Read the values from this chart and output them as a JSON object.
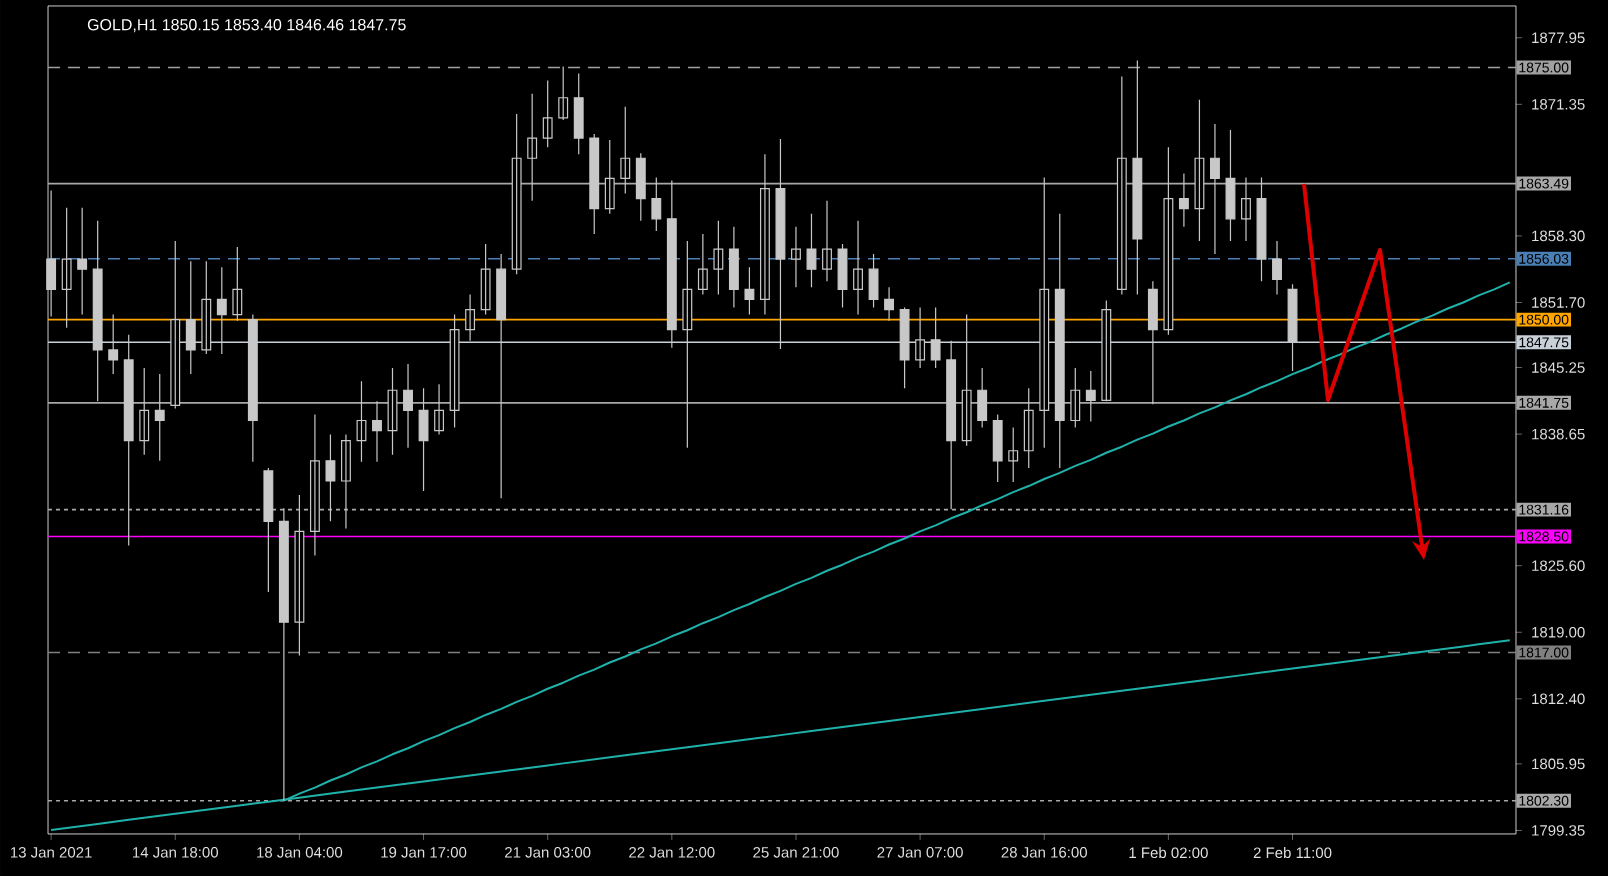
{
  "chart_data": {
    "type": "candlestick",
    "title": "GOLD,H1  1850.15 1853.40 1846.46 1847.75",
    "color": "#c8c8c8",
    "categories": [
      "13 Jan 2021",
      null,
      null,
      null,
      null,
      null,
      null,
      null,
      "14 Jan 18:00",
      null,
      null,
      null,
      null,
      null,
      null,
      null,
      "18 Jan 04:00",
      null,
      null,
      null,
      null,
      null,
      null,
      null,
      "19 Jan 17:00",
      null,
      null,
      null,
      null,
      null,
      null,
      null,
      "21 Jan 03:00",
      null,
      null,
      null,
      null,
      null,
      null,
      null,
      "22 Jan 12:00",
      null,
      null,
      null,
      null,
      null,
      null,
      null,
      "25 Jan 21:00",
      null,
      null,
      null,
      null,
      null,
      null,
      null,
      "27 Jan 07:00",
      null,
      null,
      null,
      null,
      null,
      null,
      null,
      "28 Jan 16:00",
      null,
      null,
      null,
      null,
      null,
      null,
      null,
      "1 Feb 02:00",
      null,
      null,
      null,
      null,
      null,
      null,
      null,
      "2 Feb 11:00",
      null,
      null,
      null,
      null,
      null,
      null,
      null,
      null,
      null,
      null,
      null,
      null,
      null,
      null
    ],
    "ohlc": [
      [
        1856,
        1862.8,
        1850.3,
        1853
      ],
      [
        1853,
        1861.1,
        1849.2,
        1856
      ],
      [
        1856,
        1861.1,
        1850.5,
        1855
      ],
      [
        1855,
        1859.8,
        1841.9,
        1847
      ],
      [
        1847,
        1850.5,
        1844.6,
        1846
      ],
      [
        1846,
        1848.5,
        1827.6,
        1838
      ],
      [
        1838,
        1845.2,
        1836.6,
        1841
      ],
      [
        1841,
        1844.6,
        1836,
        1840
      ],
      [
        1841.5,
        1857.8,
        1841.2,
        1850
      ],
      [
        1850,
        1855.8,
        1844.6,
        1847
      ],
      [
        1847,
        1855.8,
        1846.6,
        1852
      ],
      [
        1852,
        1855.2,
        1846.6,
        1850.5
      ],
      [
        1850.5,
        1857.2,
        1849.9,
        1853
      ],
      [
        1850,
        1850.5,
        1835.9,
        1840
      ],
      [
        1835,
        1835.3,
        1823,
        1830
      ],
      [
        1830,
        1831.3,
        1802.3,
        1820
      ],
      [
        1820,
        1832.6,
        1816.7,
        1829
      ],
      [
        1829,
        1840.6,
        1826.6,
        1836
      ],
      [
        1836,
        1838.6,
        1830,
        1834
      ],
      [
        1834,
        1838.6,
        1829.3,
        1838
      ],
      [
        1838,
        1843.9,
        1835.9,
        1840
      ],
      [
        1840,
        1841.9,
        1835.9,
        1839
      ],
      [
        1839,
        1845.2,
        1836.6,
        1843
      ],
      [
        1843,
        1845.6,
        1837.3,
        1841
      ],
      [
        1841,
        1843.2,
        1833,
        1838
      ],
      [
        1839,
        1843.6,
        1838.6,
        1841
      ],
      [
        1841,
        1850.5,
        1839.3,
        1849
      ],
      [
        1849,
        1852.5,
        1847.9,
        1851
      ],
      [
        1851,
        1857.5,
        1850.5,
        1855
      ],
      [
        1855,
        1856.5,
        1832.3,
        1850
      ],
      [
        1855,
        1870.4,
        1854.5,
        1866
      ],
      [
        1866,
        1872.4,
        1861.8,
        1868
      ],
      [
        1868,
        1873.7,
        1867.1,
        1870
      ],
      [
        1870,
        1875.1,
        1869.8,
        1872
      ],
      [
        1872,
        1874.4,
        1866.4,
        1868
      ],
      [
        1868,
        1868.4,
        1858.5,
        1861
      ],
      [
        1861,
        1867.8,
        1860.5,
        1864
      ],
      [
        1864,
        1871.1,
        1862.5,
        1866
      ],
      [
        1866,
        1866.5,
        1859.8,
        1862
      ],
      [
        1862,
        1864.1,
        1858.8,
        1860
      ],
      [
        1860,
        1863.8,
        1847.2,
        1849
      ],
      [
        1849,
        1857.8,
        1837.3,
        1853
      ],
      [
        1853,
        1858.5,
        1852.5,
        1855
      ],
      [
        1855,
        1859.8,
        1852.5,
        1857
      ],
      [
        1857,
        1859.2,
        1851.2,
        1853
      ],
      [
        1853,
        1855.2,
        1850.5,
        1852
      ],
      [
        1852,
        1866.4,
        1850.5,
        1863
      ],
      [
        1863,
        1867.9,
        1847.1,
        1856
      ],
      [
        1856,
        1859.2,
        1853.2,
        1857
      ],
      [
        1857,
        1860.5,
        1853.2,
        1855
      ],
      [
        1855,
        1861.8,
        1853.8,
        1857
      ],
      [
        1857,
        1857.5,
        1851.2,
        1853
      ],
      [
        1853,
        1859.8,
        1850.5,
        1855
      ],
      [
        1855,
        1856.5,
        1851.2,
        1852
      ],
      [
        1852,
        1853.2,
        1849.9,
        1851
      ],
      [
        1851,
        1851.2,
        1843.2,
        1846
      ],
      [
        1846,
        1851.2,
        1845.2,
        1848
      ],
      [
        1848,
        1851.2,
        1845.2,
        1846
      ],
      [
        1846,
        1847.9,
        1831.2,
        1838
      ],
      [
        1838,
        1850.5,
        1837.5,
        1843
      ],
      [
        1843,
        1845.2,
        1839.3,
        1840
      ],
      [
        1840,
        1840.6,
        1833.9,
        1836
      ],
      [
        1836,
        1839.3,
        1833.9,
        1837
      ],
      [
        1837,
        1843.2,
        1835.3,
        1841
      ],
      [
        1841,
        1864.1,
        1837.3,
        1853
      ],
      [
        1853,
        1860.5,
        1835.3,
        1840
      ],
      [
        1840,
        1845.2,
        1839.3,
        1843
      ],
      [
        1843,
        1844.9,
        1839.9,
        1842
      ],
      [
        1842,
        1851.9,
        1841.9,
        1851
      ],
      [
        1853,
        1874.1,
        1852.5,
        1866
      ],
      [
        1866,
        1875.7,
        1852.5,
        1858
      ],
      [
        1853,
        1853.8,
        1841.6,
        1849
      ],
      [
        1849,
        1867.1,
        1848.5,
        1862
      ],
      [
        1862,
        1864.5,
        1859.2,
        1861
      ],
      [
        1861,
        1871.8,
        1857.8,
        1866
      ],
      [
        1866,
        1869.4,
        1856.5,
        1864
      ],
      [
        1864,
        1868.8,
        1857.8,
        1860
      ],
      [
        1860,
        1864.1,
        1857.8,
        1862
      ],
      [
        1862,
        1864.1,
        1853.8,
        1856
      ],
      [
        1856,
        1857.8,
        1852.5,
        1854
      ],
      [
        1853,
        1853.5,
        1844.9,
        1847.75
      ],
      null,
      null,
      null,
      null,
      null,
      null,
      null,
      null,
      null,
      null,
      null,
      null,
      null,
      null
    ],
    "series": [
      {
        "type": "line",
        "color": "#20b2aa",
        "values": [
          1799.4,
          1799.6,
          1799.8,
          1800.0,
          1800.2,
          1800.4,
          1800.6,
          1800.8,
          1801.0,
          1801.2,
          1801.4,
          1801.6,
          1801.8,
          1802.0,
          1802.2,
          1802.4,
          1802.6,
          1802.8,
          1803.0,
          1803.2,
          1803.4,
          1803.6,
          1803.8,
          1804.0,
          1804.2,
          1804.4,
          1804.6,
          1804.8,
          1805.0,
          1805.2,
          1805.4,
          1805.6,
          1805.8,
          1806.0,
          1806.2,
          1806.4,
          1806.6,
          1806.8,
          1807.0,
          1807.2,
          1807.4,
          1807.6,
          1807.8,
          1808.0,
          1808.2,
          1808.4,
          1808.6,
          1808.8,
          1809.0,
          1809.2,
          1809.4,
          1809.6,
          1809.8,
          1810.0,
          1810.2,
          1810.4,
          1810.6,
          1810.8,
          1811.0,
          1811.2,
          1811.4,
          1811.6,
          1811.8,
          1812.0,
          1812.2,
          1812.4,
          1812.6,
          1812.8,
          1813.0,
          1813.2,
          1813.4,
          1813.6,
          1813.8,
          1814.0,
          1814.2,
          1814.4,
          1814.6,
          1814.8,
          1815.0,
          1815.2,
          1815.4,
          1815.6,
          1815.8,
          1816.0,
          1816.2,
          1816.4,
          1816.6,
          1816.8,
          1817.0,
          1817.2,
          1817.4,
          1817.6,
          1817.8,
          1818.0,
          1818.2
        ]
      },
      {
        "type": "line",
        "color": "#20b2aa",
        "values": [
          null,
          null,
          null,
          null,
          null,
          null,
          null,
          null,
          null,
          null,
          null,
          null,
          null,
          null,
          null,
          1802.3,
          1803.0,
          1803.6,
          1804.3,
          1804.9,
          1805.6,
          1806.2,
          1806.9,
          1807.5,
          1808.2,
          1808.8,
          1809.5,
          1810.1,
          1810.8,
          1811.4,
          1812.1,
          1812.7,
          1813.4,
          1814.0,
          1814.7,
          1815.3,
          1816.0,
          1816.6,
          1817.3,
          1817.9,
          1818.6,
          1819.2,
          1819.9,
          1820.5,
          1821.2,
          1821.8,
          1822.5,
          1823.1,
          1823.8,
          1824.4,
          1825.1,
          1825.7,
          1826.4,
          1827.0,
          1827.7,
          1828.3,
          1829.0,
          1829.6,
          1830.3,
          1830.9,
          1831.6,
          1832.2,
          1832.9,
          1833.5,
          1834.2,
          1834.8,
          1835.5,
          1836.1,
          1836.8,
          1837.4,
          1838.1,
          1838.7,
          1839.4,
          1840.0,
          1840.7,
          1841.3,
          1842.0,
          1842.6,
          1843.3,
          1843.9,
          1844.6,
          1845.2,
          1845.9,
          1846.5,
          1847.2,
          1847.8,
          1848.5,
          1849.1,
          1849.8,
          1850.4,
          1851.1,
          1851.7,
          1852.4,
          1853.0,
          1853.7
        ]
      }
    ],
    "ylim": [
      1799.0,
      1881.1
    ],
    "yticks": [
      {
        "value": 1799.35,
        "label": "1799.35"
      },
      {
        "value": 1805.95,
        "label": "1805.95"
      },
      {
        "value": 1812.4,
        "label": "1812.40"
      },
      {
        "value": 1819.0,
        "label": "1819.00"
      },
      {
        "value": 1825.6,
        "label": "1825.60"
      },
      {
        "value": 1838.65,
        "label": "1838.65"
      },
      {
        "value": 1845.25,
        "label": "1845.25"
      },
      {
        "value": 1851.7,
        "label": "1851.70"
      },
      {
        "value": 1858.3,
        "label": "1858.30"
      },
      {
        "value": 1871.35,
        "label": "1871.35"
      },
      {
        "value": 1877.95,
        "label": "1877.95"
      }
    ],
    "ref_lines": [
      {
        "axis": "y",
        "value": 1875.0,
        "label": "1875.00",
        "color": "#a0a0a0",
        "line_style": "dashed"
      },
      {
        "axis": "y",
        "value": 1863.49,
        "label": "1863.49",
        "color": "#a8a8a8",
        "line_style": "solid"
      },
      {
        "axis": "y",
        "value": 1856.03,
        "label": "1856.03",
        "color": "#4a7fb5",
        "line_style": "dashed"
      },
      {
        "axis": "y",
        "value": 1850.0,
        "label": "1850.00",
        "color": "#ffa500",
        "line_style": "solid"
      },
      {
        "axis": "y",
        "value": 1847.75,
        "label": "1847.75",
        "color": "#c8d0d8",
        "line_style": "solid"
      },
      {
        "axis": "y",
        "value": 1841.75,
        "label": "1841.75",
        "color": "#a8a8a8",
        "line_style": "solid"
      },
      {
        "axis": "y",
        "value": 1831.16,
        "label": "1831.16",
        "color": "#a8a8a8",
        "line_style": "dotted"
      },
      {
        "axis": "y",
        "value": 1828.5,
        "label": "1828.50",
        "color": "#ff00ff",
        "line_style": "solid"
      },
      {
        "axis": "y",
        "value": 1817.0,
        "label": "1817.00",
        "color": "#808080",
        "line_style": "dashed"
      },
      {
        "axis": "y",
        "value": 1802.3,
        "label": "1802.30",
        "color": "#a8a8a8",
        "line_style": "dotted"
      }
    ]
  }
}
